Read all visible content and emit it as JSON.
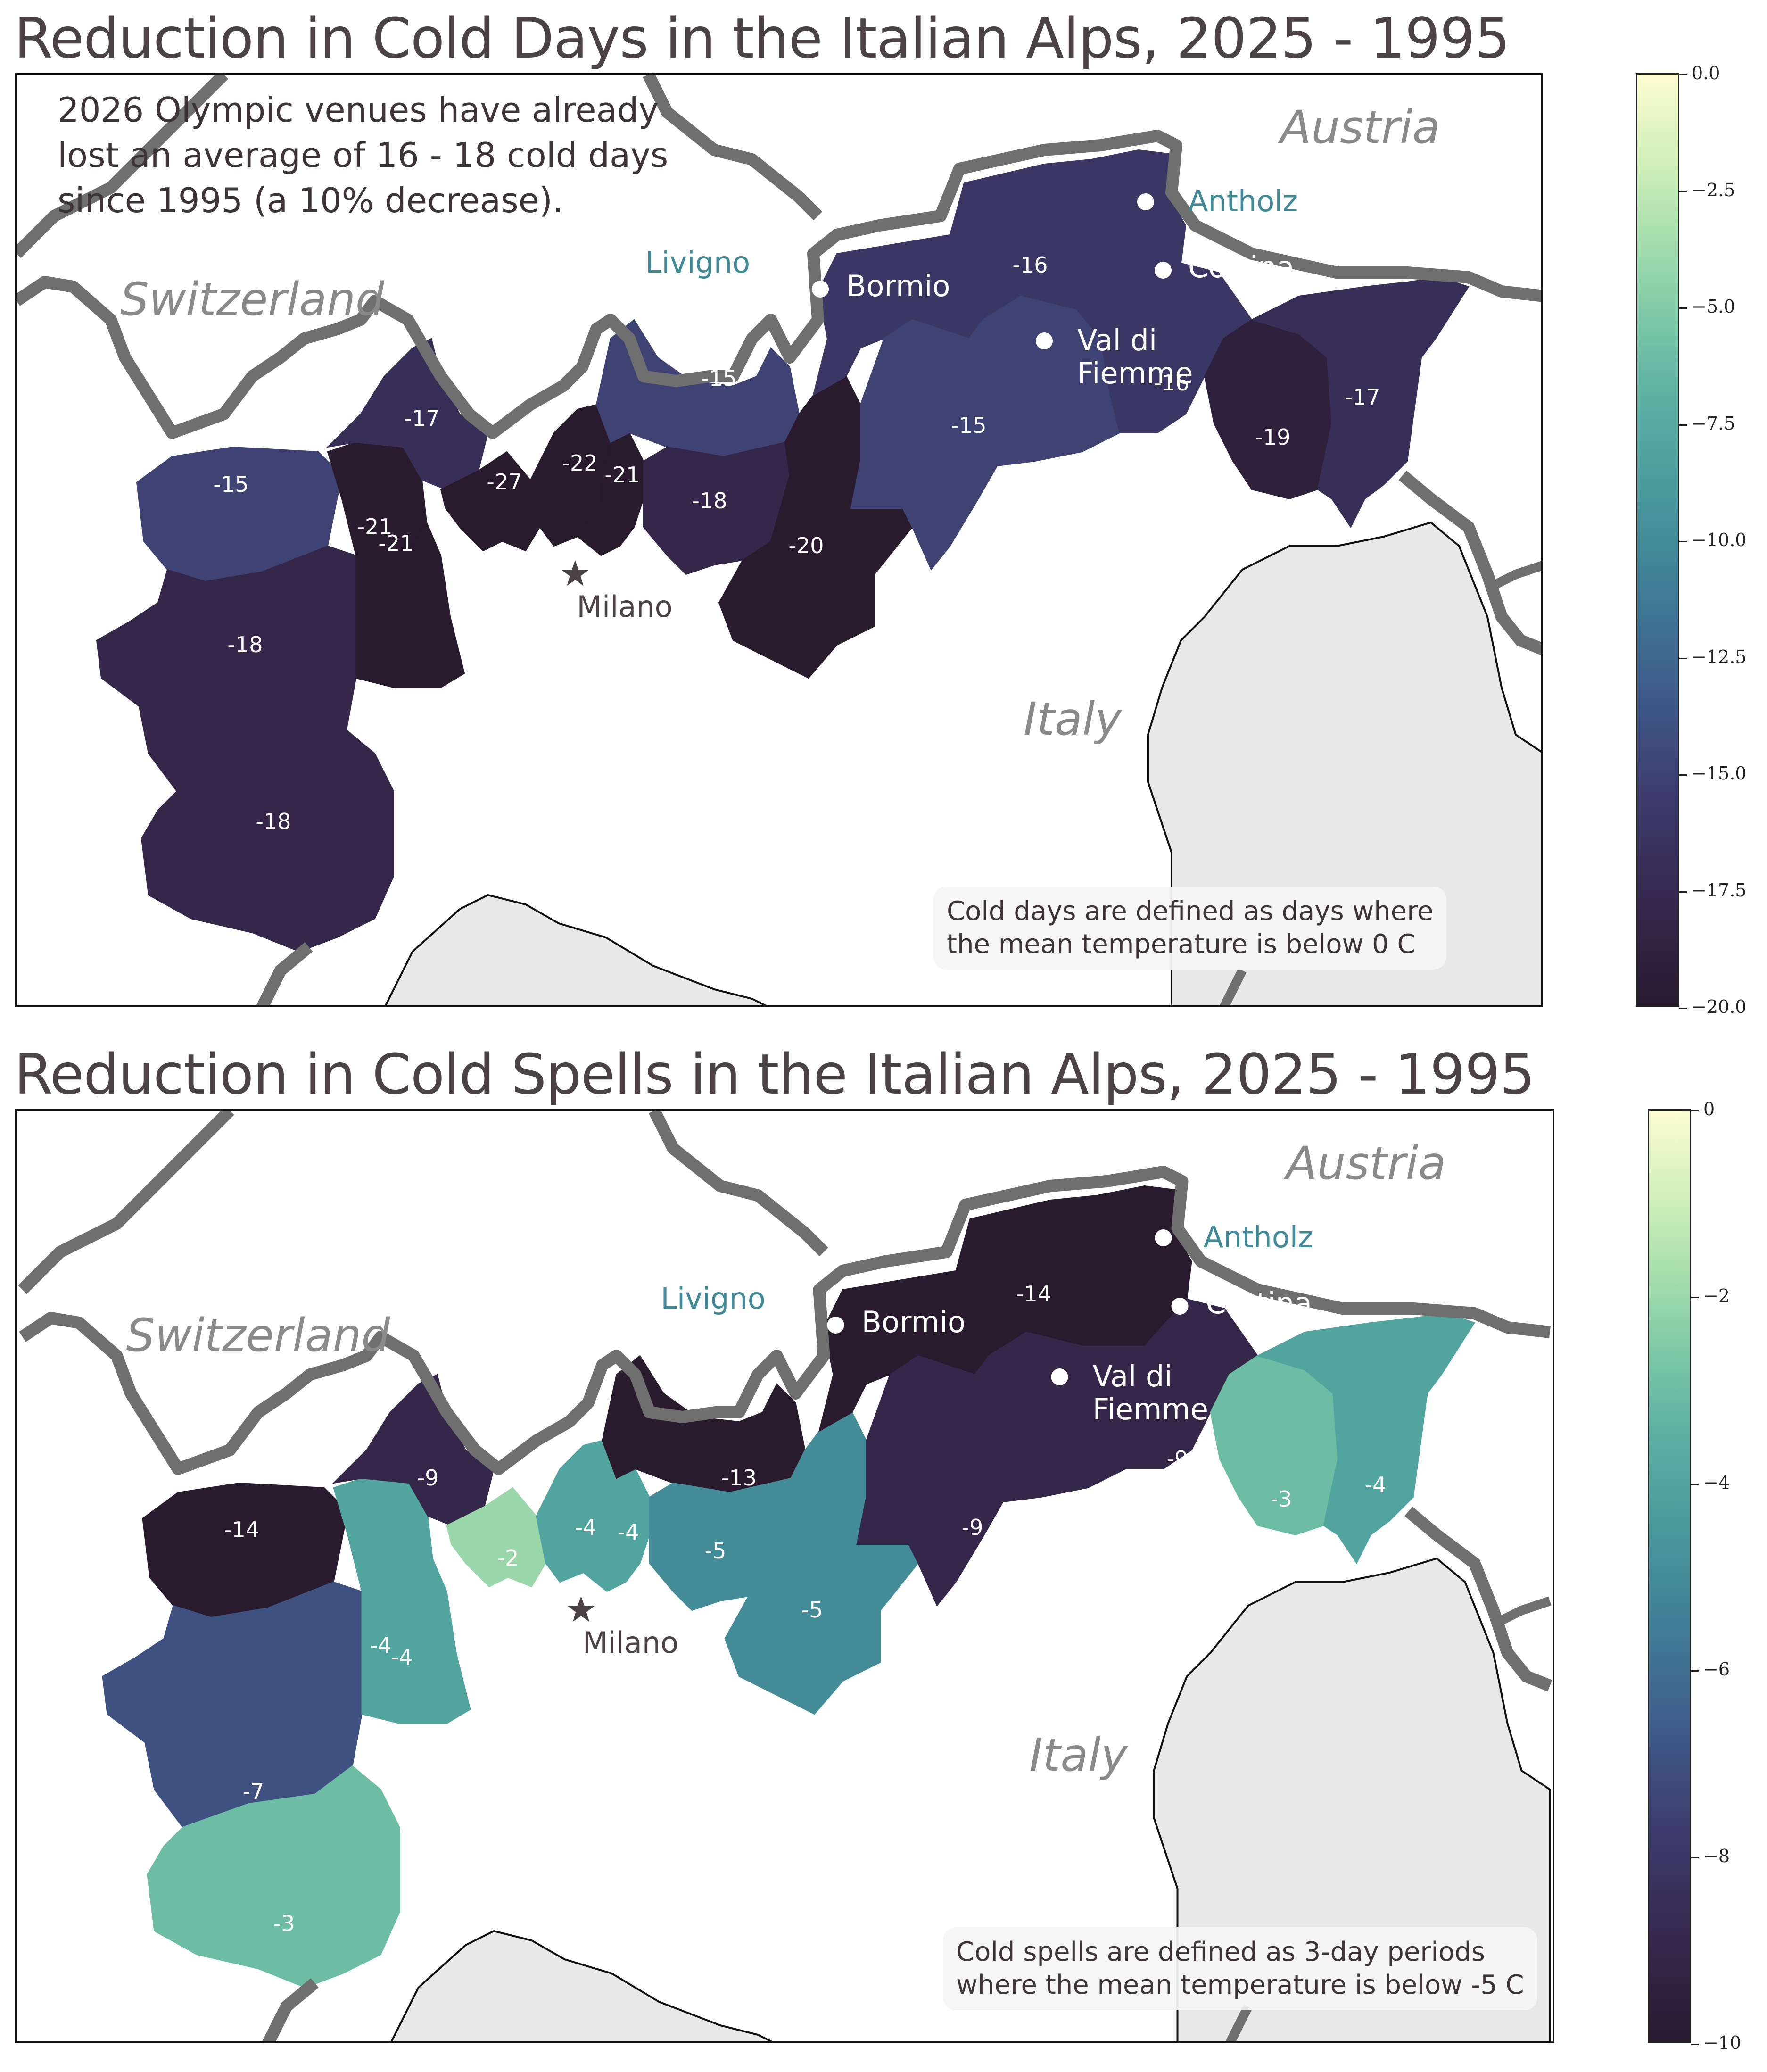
{
  "colormap": [
    "#2a1a2e",
    "#35284d",
    "#3d3b6b",
    "#3f5a8a",
    "#3f7d96",
    "#4a9a9c",
    "#5fb4a3",
    "#8fd3a8",
    "#c8ecb6",
    "#fdfdd2"
  ],
  "panels": [
    {
      "title": "Reduction in Cold Days in the Italian Alps, 2025 - 1995",
      "headline_note": "2026 Olympic venues have already\nlost an average of 16 - 18 cold days\nsince 1995 (a 10% decrease).",
      "footnote": "Cold days are defined as days where\nthe mean temperature is below 0 C",
      "countries": {
        "austria": "Austria",
        "switzerland": "Switzerland",
        "italy": "Italy"
      },
      "cities": {
        "milano": "Milano"
      },
      "venues": {
        "antholz": "Antholz",
        "livigno": "Livigno",
        "bormio": "Bormio",
        "cortina": "Cortina",
        "val_di_fiemme": "Val di\nFiemme"
      },
      "colorbar": {
        "min": -20.0,
        "max": 0.0,
        "ticks": [
          "0.0",
          "−2.5",
          "−5.0",
          "−7.5",
          "−10.0",
          "−12.5",
          "−15.0",
          "−17.5",
          "−20.0"
        ],
        "tick_values": [
          0.0,
          -2.5,
          -5.0,
          -7.5,
          -10.0,
          -12.5,
          -15.0,
          -17.5,
          -20.0
        ]
      },
      "regions": [
        {
          "label": "-15",
          "value": -15
        },
        {
          "label": "-18",
          "value": -18
        },
        {
          "label": "-18",
          "value": -18
        },
        {
          "label": "-21",
          "value": -21
        },
        {
          "label": "-21",
          "value": -21
        },
        {
          "label": "-17",
          "value": -17
        },
        {
          "label": "-27",
          "value": -27
        },
        {
          "label": "-22",
          "value": -22
        },
        {
          "label": "-21",
          "value": -21
        },
        {
          "label": "-15",
          "value": -15
        },
        {
          "label": "-18",
          "value": -18
        },
        {
          "label": "-20",
          "value": -20
        },
        {
          "label": "-16",
          "value": -16
        },
        {
          "label": "-15",
          "value": -15
        },
        {
          "label": "-16",
          "value": -16
        },
        {
          "label": "-19",
          "value": -19
        },
        {
          "label": "-17",
          "value": -17
        }
      ]
    },
    {
      "title": "Reduction in Cold Spells in the Italian Alps, 2025 - 1995",
      "headline_note": "",
      "footnote": "Cold spells are defined as 3-day periods\nwhere the mean temperature is below -5 C",
      "countries": {
        "austria": "Austria",
        "switzerland": "Switzerland",
        "italy": "Italy"
      },
      "cities": {
        "milano": "Milano"
      },
      "venues": {
        "antholz": "Antholz",
        "livigno": "Livigno",
        "bormio": "Bormio",
        "cortina": "Cortina",
        "val_di_fiemme": "Val di\nFiemme"
      },
      "colorbar": {
        "min": -10,
        "max": 0,
        "ticks": [
          "0",
          "−2",
          "−4",
          "−6",
          "−8",
          "−10"
        ],
        "tick_values": [
          0,
          -2,
          -4,
          -6,
          -8,
          -10
        ]
      },
      "regions": [
        {
          "label": "-14",
          "value": -14
        },
        {
          "label": "-7",
          "value": -7
        },
        {
          "label": "-3",
          "value": -3
        },
        {
          "label": "-4",
          "value": -4
        },
        {
          "label": "-4",
          "value": -4
        },
        {
          "label": "-9",
          "value": -9
        },
        {
          "label": "-2",
          "value": -2
        },
        {
          "label": "-4",
          "value": -4
        },
        {
          "label": "-4",
          "value": -4
        },
        {
          "label": "-13",
          "value": -13
        },
        {
          "label": "-5",
          "value": -5
        },
        {
          "label": "-5",
          "value": -5
        },
        {
          "label": "-14",
          "value": -14
        },
        {
          "label": "-9",
          "value": -9
        },
        {
          "label": "-9",
          "value": -9
        },
        {
          "label": "-3",
          "value": -3
        },
        {
          "label": "-4",
          "value": -4
        }
      ]
    }
  ]
}
